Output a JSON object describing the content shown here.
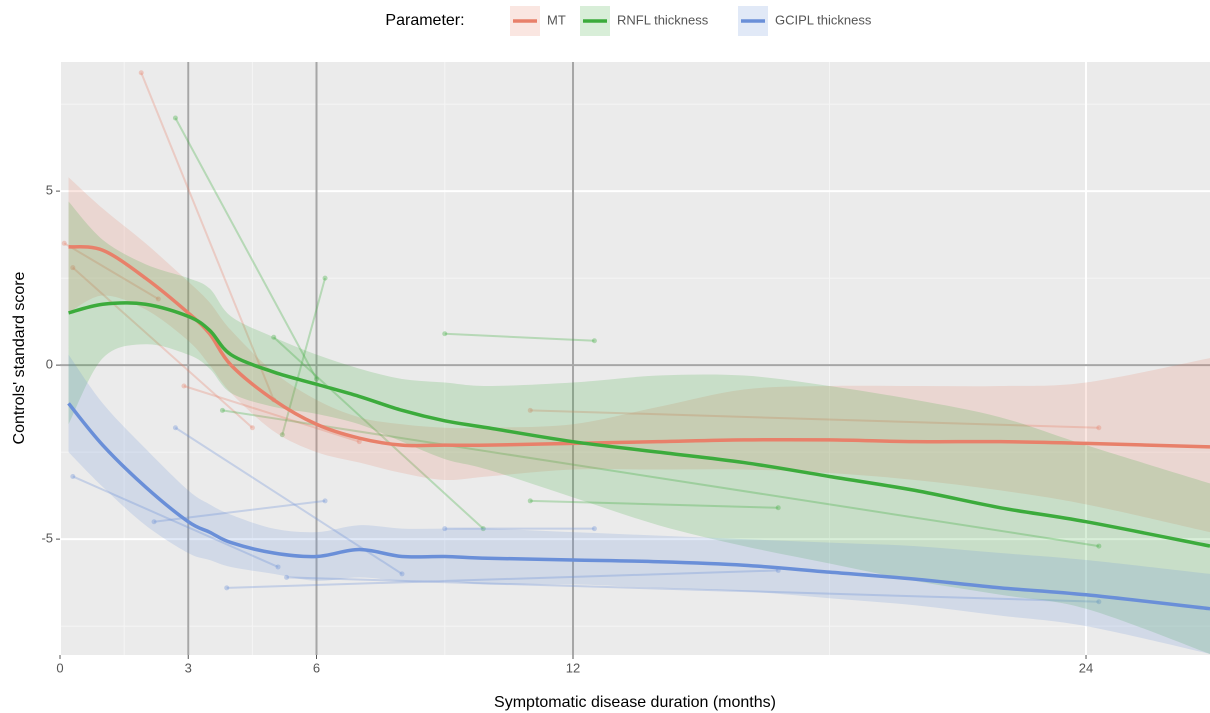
{
  "chart_data": {
    "type": "line",
    "legend_title": "Parameter:",
    "legend_position": "top",
    "x_label": "Symptomatic disease duration (months)",
    "y_label": "Controls' standard score",
    "xlim": [
      0,
      26.9
    ],
    "xticks": [
      0,
      3,
      6,
      12,
      24
    ],
    "ylim": [
      -8.33,
      8.71
    ],
    "yticks": [
      -5,
      0,
      5
    ],
    "grid": true,
    "vlines": [
      3,
      6,
      12
    ],
    "hline": 0,
    "x": [
      0.2,
      1,
      2,
      3,
      3.5,
      4,
      5,
      6,
      7,
      8,
      9,
      10,
      12,
      14,
      16,
      18,
      20,
      22,
      24,
      26.9
    ],
    "series": [
      {
        "name": "MT",
        "color": "#e8806a",
        "values": [
          3.4,
          3.3,
          2.5,
          1.5,
          0.9,
          0,
          -1.0,
          -1.7,
          -2.1,
          -2.3,
          -2.3,
          -2.3,
          -2.25,
          -2.2,
          -2.15,
          -2.15,
          -2.2,
          -2.2,
          -2.25,
          -2.35
        ],
        "upper": [
          5.4,
          4.5,
          3.5,
          2.4,
          1.8,
          1.0,
          -0.2,
          -1.0,
          -1.5,
          -1.7,
          -1.8,
          -1.8,
          -1.7,
          -1.2,
          -0.7,
          -0.6,
          -0.6,
          -0.6,
          -0.5,
          0.2
        ],
        "lower": [
          1.5,
          2.0,
          1.6,
          0.7,
          0.0,
          -0.8,
          -1.9,
          -2.5,
          -2.8,
          -3.1,
          -3.3,
          -3.2,
          -3.0,
          -3.0,
          -3.0,
          -3.1,
          -3.3,
          -3.6,
          -4.0,
          -4.8
        ],
        "trajectories": [
          {
            "x": [
              1.9,
              5.0
            ],
            "values": [
              8.4,
              -1.0
            ]
          },
          {
            "x": [
              0.3,
              4.5
            ],
            "values": [
              2.8,
              -1.8
            ]
          },
          {
            "x": [
              2.9,
              7.0
            ],
            "values": [
              -0.6,
              -2.2
            ]
          },
          {
            "x": [
              11.0,
              24.3
            ],
            "values": [
              -1.3,
              -1.8
            ]
          },
          {
            "x": [
              0.1,
              2.3
            ],
            "values": [
              3.5,
              1.9
            ]
          }
        ]
      },
      {
        "name": "RNFL thickness",
        "color": "#3cab3c",
        "values": [
          1.5,
          1.75,
          1.75,
          1.4,
          1.0,
          0.3,
          -0.2,
          -0.55,
          -0.9,
          -1.3,
          -1.6,
          -1.8,
          -2.2,
          -2.5,
          -2.8,
          -3.2,
          -3.6,
          -4.1,
          -4.5,
          -5.2
        ],
        "upper": [
          4.7,
          3.6,
          2.9,
          2.5,
          2.2,
          1.4,
          0.8,
          0.3,
          -0.1,
          -0.4,
          -0.5,
          -0.6,
          -0.5,
          -0.3,
          -0.3,
          -0.6,
          -1.0,
          -1.5,
          -2.3,
          -3.4
        ],
        "lower": [
          -1.7,
          0.2,
          0.6,
          0.3,
          -0.1,
          -0.8,
          -1.2,
          -1.4,
          -1.7,
          -2.2,
          -2.7,
          -3.0,
          -3.8,
          -4.6,
          -5.2,
          -5.7,
          -6.2,
          -6.6,
          -7.0,
          -8.3
        ],
        "trajectories": [
          {
            "x": [
              2.7,
              6.0
            ],
            "values": [
              7.1,
              -0.4
            ]
          },
          {
            "x": [
              9.0,
              12.5
            ],
            "values": [
              0.9,
              0.7
            ]
          },
          {
            "x": [
              5.0,
              9.9
            ],
            "values": [
              0.8,
              -4.7
            ]
          },
          {
            "x": [
              11.0,
              16.8
            ],
            "values": [
              -3.9,
              -4.1
            ]
          },
          {
            "x": [
              3.8,
              24.3
            ],
            "values": [
              -1.3,
              -5.2
            ]
          },
          {
            "x": [
              5.2,
              6.2
            ],
            "values": [
              -2.0,
              2.5
            ]
          }
        ]
      },
      {
        "name": "GCIPL thickness",
        "color": "#6a8fd8",
        "values": [
          -1.1,
          -2.3,
          -3.5,
          -4.5,
          -4.8,
          -5.1,
          -5.4,
          -5.5,
          -5.3,
          -5.5,
          -5.5,
          -5.55,
          -5.6,
          -5.65,
          -5.75,
          -5.95,
          -6.15,
          -6.4,
          -6.6,
          -7.0
        ],
        "upper": [
          0.3,
          -1.1,
          -2.4,
          -3.6,
          -4.0,
          -4.3,
          -4.7,
          -4.8,
          -4.6,
          -4.7,
          -4.7,
          -4.7,
          -4.8,
          -4.9,
          -5.0,
          -5.1,
          -5.2,
          -5.4,
          -5.6,
          -6.0
        ],
        "lower": [
          -2.5,
          -3.5,
          -4.6,
          -5.4,
          -5.6,
          -5.8,
          -6.0,
          -6.2,
          -6.1,
          -6.2,
          -6.2,
          -6.3,
          -6.3,
          -6.4,
          -6.5,
          -6.7,
          -6.9,
          -7.2,
          -7.5,
          -8.3
        ],
        "trajectories": [
          {
            "x": [
              0.3,
              5.1
            ],
            "values": [
              -3.2,
              -5.8
            ]
          },
          {
            "x": [
              2.2,
              6.2
            ],
            "values": [
              -4.5,
              -3.9
            ]
          },
          {
            "x": [
              3.9,
              16.8
            ],
            "values": [
              -6.4,
              -5.9
            ]
          },
          {
            "x": [
              9.0,
              12.5
            ],
            "values": [
              -4.7,
              -4.7
            ]
          },
          {
            "x": [
              5.3,
              24.3
            ],
            "values": [
              -6.1,
              -6.8
            ]
          },
          {
            "x": [
              2.7,
              8.0
            ],
            "values": [
              -1.8,
              -6.0
            ]
          }
        ]
      }
    ]
  }
}
